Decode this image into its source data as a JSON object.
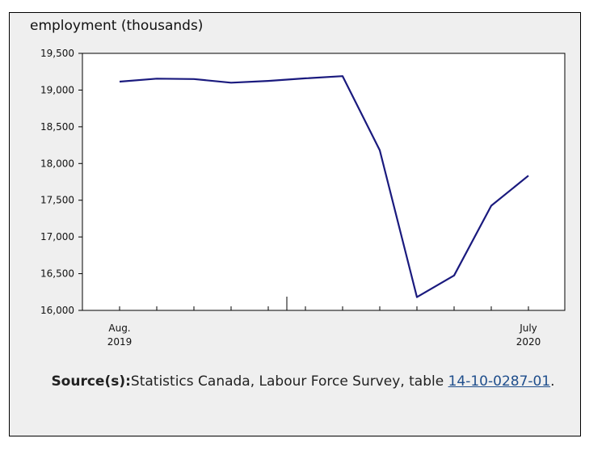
{
  "chart_data": {
    "type": "line",
    "ylabel": "employment (thousands)",
    "ylim": [
      16000,
      19500
    ],
    "yticks": [
      16000,
      16500,
      17000,
      17500,
      18000,
      18500,
      19000,
      19500
    ],
    "ytick_labels": [
      "16,000",
      "16,500",
      "17,000",
      "17,500",
      "18,000",
      "18,500",
      "19,000",
      "19,500"
    ],
    "x": [
      "2019-08",
      "2019-09",
      "2019-10",
      "2019-11",
      "2019-12",
      "2020-01",
      "2020-02",
      "2020-03",
      "2020-04",
      "2020-05",
      "2020-06",
      "2020-07"
    ],
    "x_labels": [
      {
        "index": 0,
        "line1": "Aug.",
        "line2": "2019"
      },
      {
        "index": 11,
        "line1": "July",
        "line2": "2020"
      }
    ],
    "series": [
      {
        "values": [
          19115,
          19155,
          19150,
          19100,
          19125,
          19160,
          19190,
          18180,
          16180,
          16475,
          17425,
          17835
        ],
        "color": "#1a1a7e"
      }
    ],
    "grid": false
  },
  "source": {
    "prefix": "Source(s):",
    "text": "Statistics Canada, Labour Force Survey, table ",
    "link_text": "14-10-0287-01",
    "suffix": "."
  }
}
